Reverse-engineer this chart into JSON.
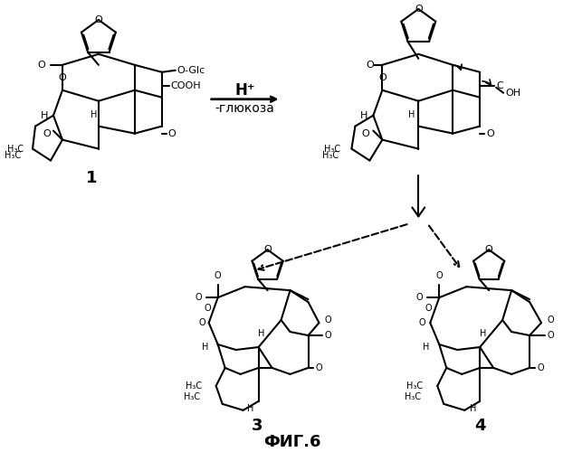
{
  "title": "",
  "caption": "ФИГ.6",
  "label1": "1",
  "label3": "3",
  "label4": "4",
  "reaction_label_top": "H⁺",
  "reaction_label_bottom": "-глюкоза",
  "bg_color": "#ffffff",
  "fig_width": 6.43,
  "fig_height": 5.0,
  "dpi": 100
}
